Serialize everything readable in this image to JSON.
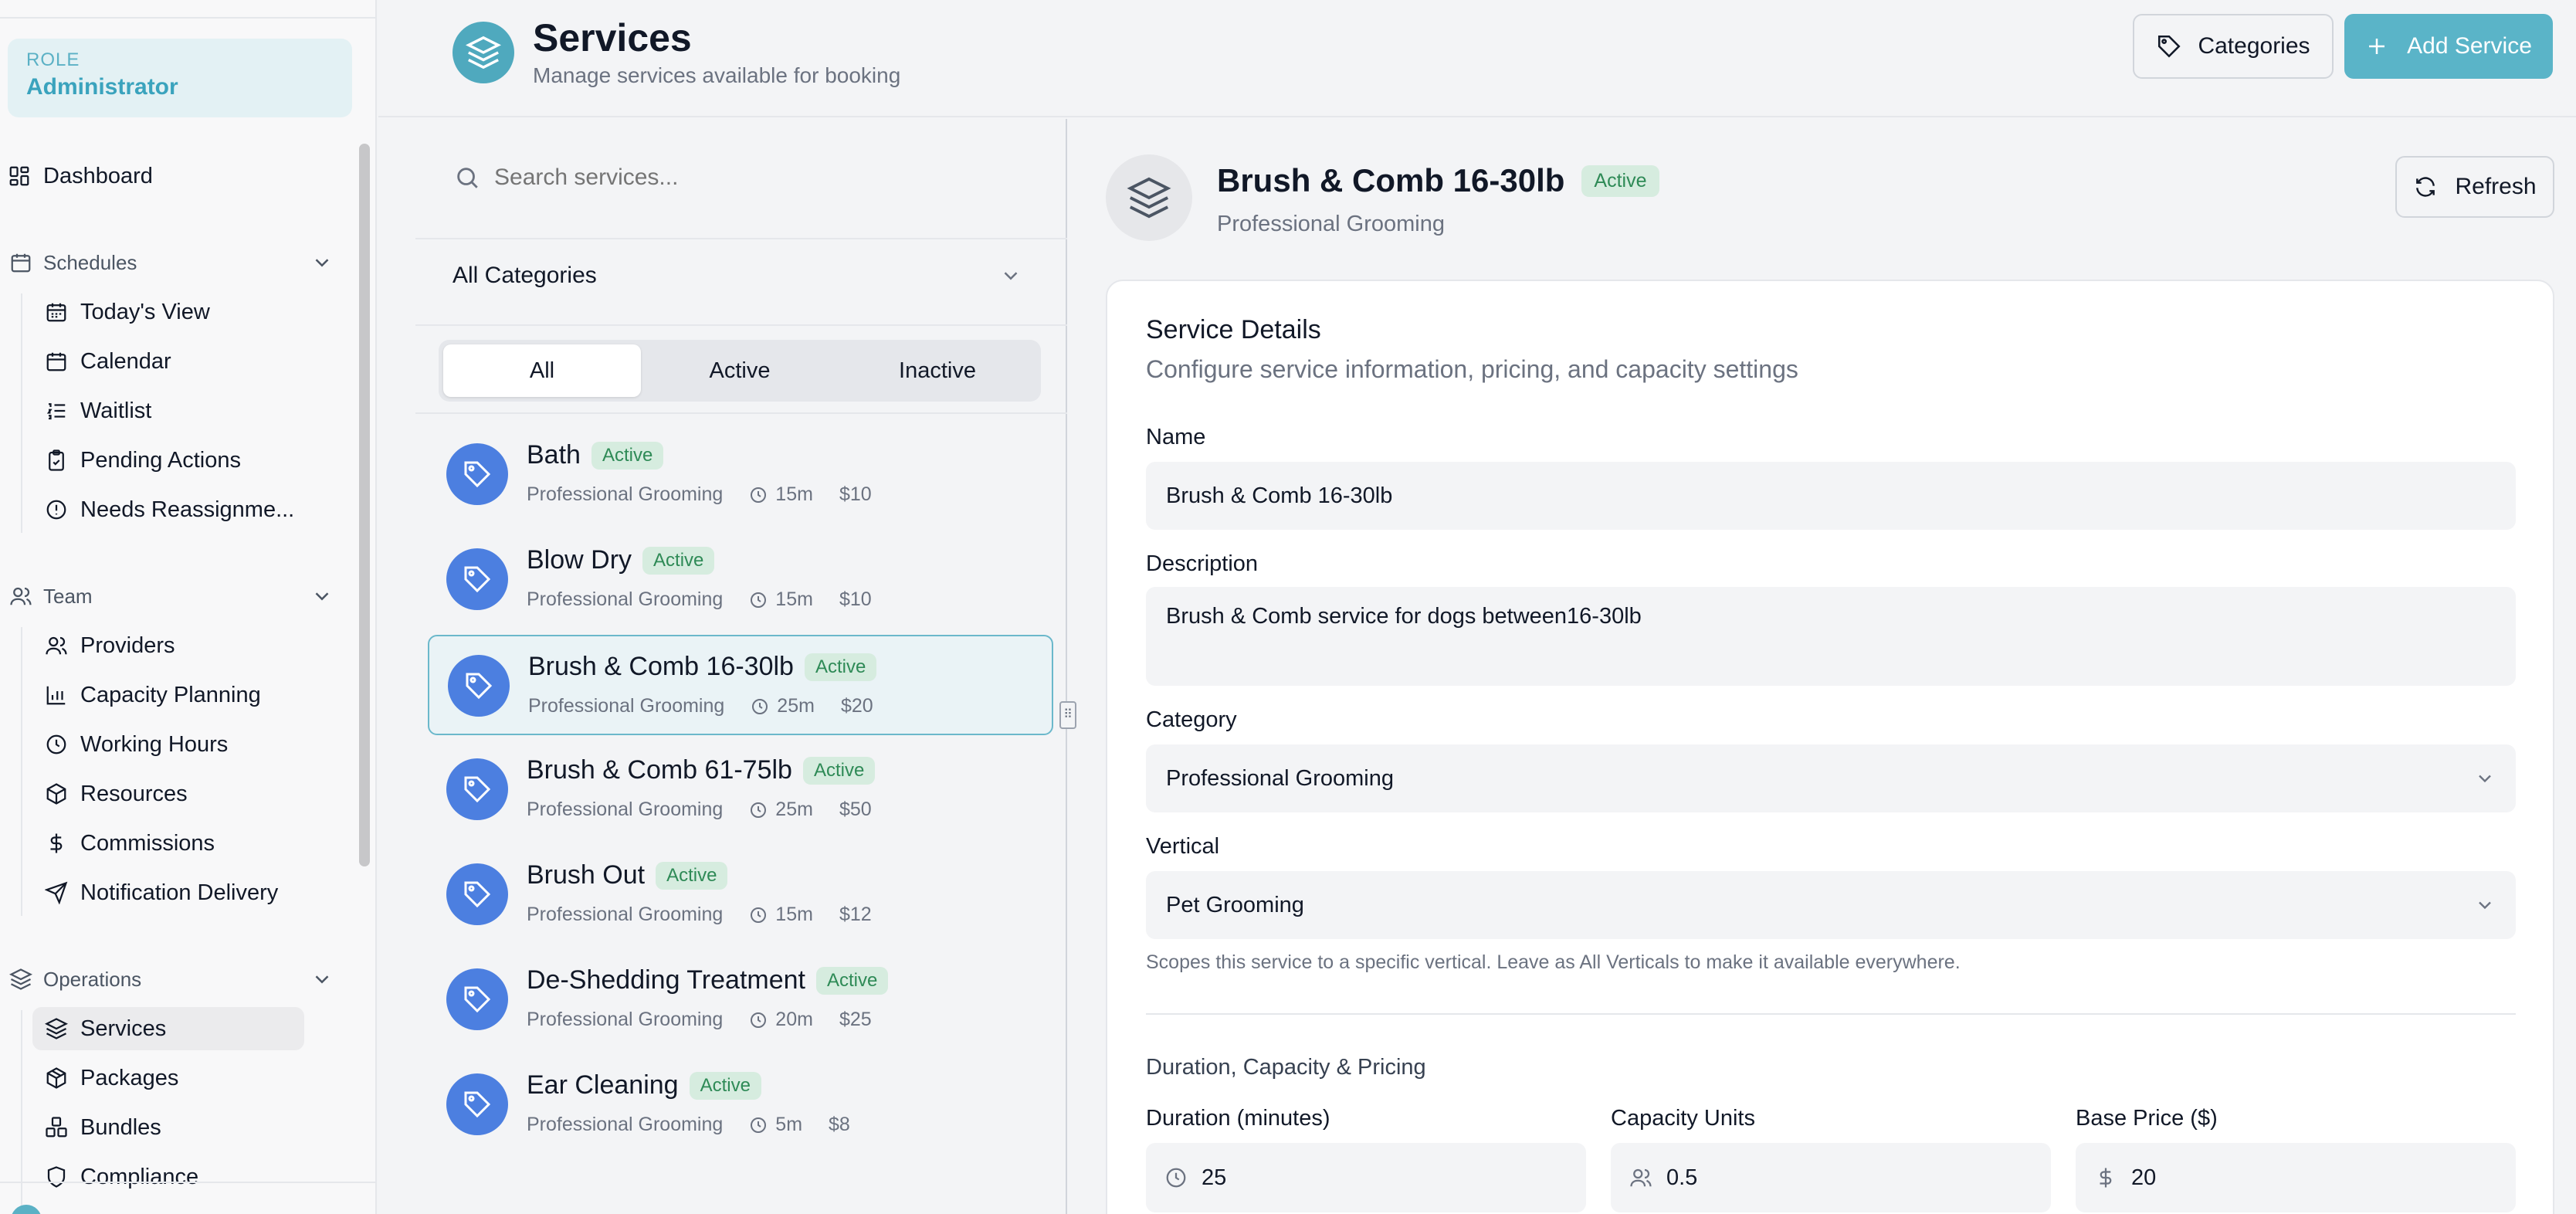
{
  "sidebar": {
    "role_label": "ROLE",
    "role_value": "Administrator",
    "dashboard": "Dashboard",
    "groups": {
      "schedules": "Schedules",
      "team": "Team",
      "operations": "Operations"
    },
    "schedules_items": [
      "Today's View",
      "Calendar",
      "Waitlist",
      "Pending Actions",
      "Needs Reassignme..."
    ],
    "team_items": [
      "Providers",
      "Capacity Planning",
      "Working Hours",
      "Resources",
      "Commissions",
      "Notification Delivery"
    ],
    "operations_items": [
      "Services",
      "Packages",
      "Bundles",
      "Compliance"
    ]
  },
  "header": {
    "title": "Services",
    "subtitle": "Manage services available for booking",
    "categories_button": "Categories",
    "add_button": "Add Service"
  },
  "list": {
    "search_placeholder": "Search services...",
    "category_filter": "All Categories",
    "tabs": [
      "All",
      "Active",
      "Inactive"
    ],
    "services": [
      {
        "name": "Bath",
        "status": "Active",
        "category": "Professional Grooming",
        "duration": "15m",
        "price": "$10"
      },
      {
        "name": "Blow Dry",
        "status": "Active",
        "category": "Professional Grooming",
        "duration": "15m",
        "price": "$10"
      },
      {
        "name": "Brush & Comb 16-30lb",
        "status": "Active",
        "category": "Professional Grooming",
        "duration": "25m",
        "price": "$20"
      },
      {
        "name": "Brush & Comb 61-75lb",
        "status": "Active",
        "category": "Professional Grooming",
        "duration": "25m",
        "price": "$50"
      },
      {
        "name": "Brush Out",
        "status": "Active",
        "category": "Professional Grooming",
        "duration": "15m",
        "price": "$12"
      },
      {
        "name": "De-Shedding Treatment",
        "status": "Active",
        "category": "Professional Grooming",
        "duration": "20m",
        "price": "$25"
      },
      {
        "name": "Ear Cleaning",
        "status": "Active",
        "category": "Professional Grooming",
        "duration": "5m",
        "price": "$8"
      }
    ]
  },
  "detail": {
    "name": "Brush & Comb 16-30lb",
    "status": "Active",
    "category": "Professional Grooming",
    "refresh_button": "Refresh",
    "card_title": "Service Details",
    "card_subtitle": "Configure service information, pricing, and capacity settings",
    "name_label": "Name",
    "name_value": "Brush & Comb 16-30lb",
    "description_label": "Description",
    "description_value": "Brush & Comb service for dogs between16-30lb",
    "category_label": "Category",
    "category_value": "Professional Grooming",
    "vertical_label": "Vertical",
    "vertical_value": "Pet Grooming",
    "vertical_hint": "Scopes this service to a specific vertical. Leave as All Verticals to make it available everywhere.",
    "section_title": "Duration, Capacity & Pricing",
    "duration_label": "Duration (minutes)",
    "duration_value": "25",
    "capacity_label": "Capacity Units",
    "capacity_value": "0.5",
    "price_label": "Base Price ($)",
    "price_value": "20"
  },
  "colors": {
    "accent": "#5ab4c8",
    "service_icon": "#4c7fe0",
    "badge_bg": "#d6ecdf",
    "badge_text": "#2e8a56"
  }
}
